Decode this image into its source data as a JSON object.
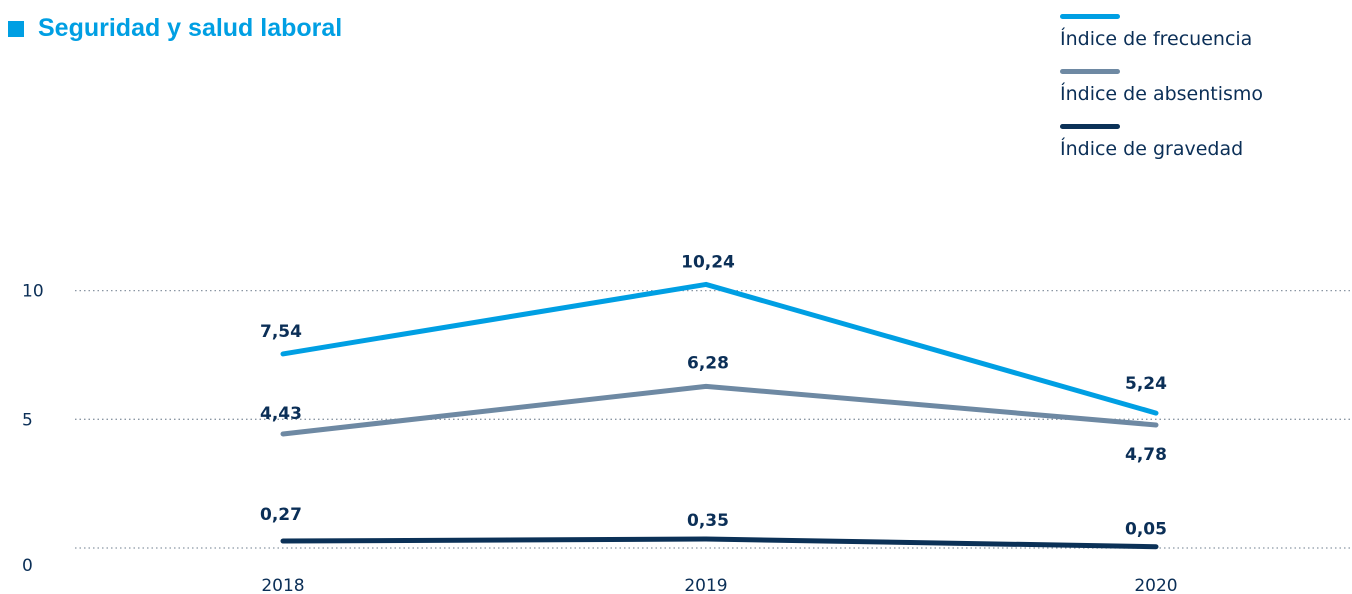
{
  "chart_data": {
    "type": "line",
    "title": "Seguridad y salud laboral",
    "categories": [
      "2018",
      "2019",
      "2020"
    ],
    "y_ticks": [
      "0",
      "5",
      "10"
    ],
    "ylim": [
      0,
      10.8
    ],
    "grid": true,
    "legend_position": "top-right",
    "series": [
      {
        "name": "Índice de frecuencia",
        "values": [
          7.54,
          10.24,
          5.24
        ],
        "labels": [
          "7,54",
          "10,24",
          "5,24"
        ],
        "color": "#009fe3"
      },
      {
        "name": "Índice de absentismo",
        "values": [
          4.43,
          6.28,
          4.78
        ],
        "labels": [
          "4,43",
          "6,28",
          "4,78"
        ],
        "color": "#6e89a3"
      },
      {
        "name": "Índice de gravedad",
        "values": [
          0.27,
          0.35,
          0.05
        ],
        "labels": [
          "0,27",
          "0,35",
          "0,05"
        ],
        "color": "#0b3157"
      }
    ]
  }
}
